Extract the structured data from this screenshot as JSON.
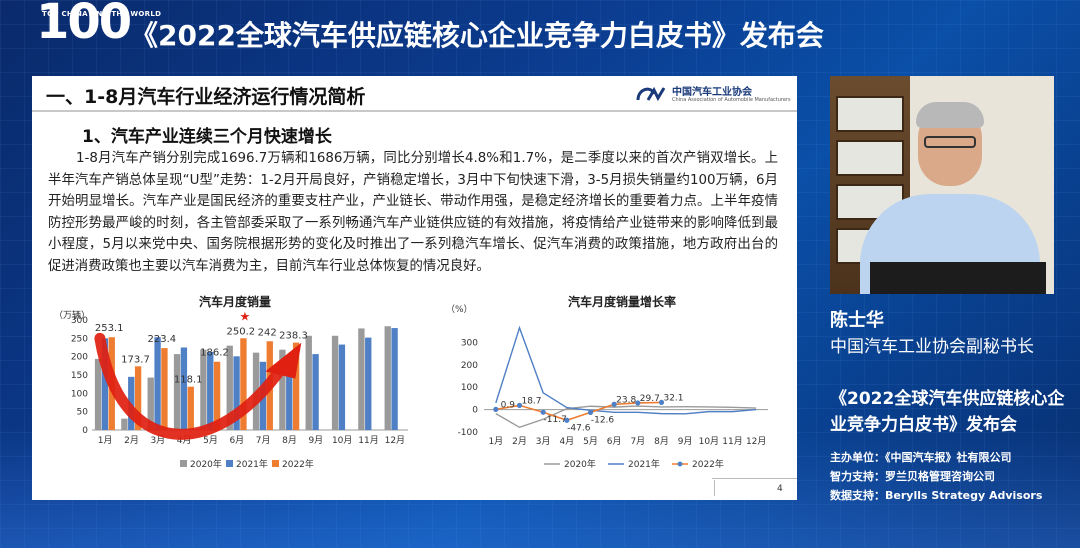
{
  "header": {
    "logo_number": "100",
    "logo_tagline": "TOP CHINA AND THE WORLD",
    "event_title": "《2022全球汽车供应链核心企业竞争力白皮书》发布会"
  },
  "slide": {
    "header_title": "一、1-8月汽车行业经济运行情况简析",
    "org_name": "中国汽车工业协会",
    "org_subtitle": "China Association of Automobile Manufacturers",
    "section_title": "1、汽车产业连续三个月快速增长",
    "paragraph": "1-8月汽车产销分别完成1696.7万辆和1686万辆，同比分别增长4.8%和1.7%，是二季度以来的首次产销双增长。上半年汽车产销总体呈现“U型”走势：1-2月开局良好，产销稳定增长，3月中下旬快速下滑，3-5月损失销量约100万辆，6月开始明显增长。汽车产业是国民经济的重要支柱产业，产业链长、带动作用强，是稳定经济增长的重要着力点。上半年疫情防控形势最严峻的时刻，各主管部委采取了一系列畅通汽车产业链供应链的有效措施，将疫情给产业链带来的影响降低到最小程度，5月以来党中央、国务院根据形势的变化及时推出了一系列稳汽车增长、促汽车消费的政策措施，地方政府出台的促进消费政策也主要以汽车消费为主，目前汽车行业总体恢复的情况良好。",
    "page_number": "4"
  },
  "speaker": {
    "name": "陈士华",
    "title": "中国汽车工业协会副秘书长"
  },
  "conference": {
    "name": "《2022全球汽车供应链核心企业竞争力白皮书》发布会",
    "host": "主办单位：《中国汽车报》社有限公司",
    "support": "智力支持：罗兰贝格管理咨询公司",
    "data_support": "数据支持：Berylls Strategy Advisors"
  },
  "colors": {
    "y2020": "#9a9a9a",
    "y2021": "#4f7fc4",
    "y2022": "#ee7d31",
    "arrow": "#e02010",
    "star": "#e02010"
  },
  "chart_data": [
    {
      "type": "bar",
      "title": "汽车月度销量",
      "ylabel": "（万辆）",
      "categories": [
        "1月",
        "2月",
        "3月",
        "4月",
        "5月",
        "6月",
        "7月",
        "8月",
        "9月",
        "10月",
        "11月",
        "12月"
      ],
      "ylim": [
        0,
        300
      ],
      "yticks": [
        0,
        50,
        100,
        150,
        200,
        250,
        300
      ],
      "series": [
        {
          "name": "2020年",
          "values": [
            194,
            31,
            143,
            207,
            219,
            230,
            211,
            219,
            257,
            257,
            277,
            283
          ]
        },
        {
          "name": "2021年",
          "values": [
            250,
            145,
            253,
            225,
            213,
            201,
            186,
            180,
            207,
            233,
            252,
            278
          ]
        },
        {
          "name": "2022年",
          "values": [
            253.1,
            173.7,
            223.4,
            118.1,
            186.2,
            250.2,
            242,
            238.3,
            null,
            null,
            null,
            null
          ]
        }
      ],
      "data_labels": [
        "253.1",
        "173.7",
        "223.4",
        "118.1",
        "186.2",
        "250.2",
        "242",
        "238.3"
      ],
      "legend": "bottom",
      "annotations": [
        "star above 6月"
      ]
    },
    {
      "type": "line",
      "title": "汽车月度销量增长率",
      "ylabel": "（%）",
      "categories": [
        "1月",
        "2月",
        "3月",
        "4月",
        "5月",
        "6月",
        "7月",
        "8月",
        "9月",
        "10月",
        "11月",
        "12月"
      ],
      "ylim": [
        -100,
        400
      ],
      "yticks": [
        -100,
        0,
        100,
        200,
        300
      ],
      "series": [
        {
          "name": "2020年",
          "values": [
            -18,
            -79,
            -43,
            4,
            15,
            11,
            16,
            12,
            13,
            12,
            10,
            7
          ]
        },
        {
          "name": "2021年",
          "values": [
            30,
            365,
            75,
            9,
            -3,
            -12,
            -12,
            -18,
            -19,
            -9,
            -9,
            0
          ]
        },
        {
          "name": "2022年",
          "values": [
            0.9,
            18.7,
            -11.7,
            -47.6,
            -12.6,
            23.8,
            29.7,
            32.1,
            null,
            null,
            null,
            null
          ]
        }
      ],
      "data_labels": [
        "0.9",
        "18.7",
        "-11.7",
        "-47.6",
        "-12.6",
        "23.8",
        "29.7",
        "32.1"
      ],
      "legend": "bottom"
    }
  ]
}
